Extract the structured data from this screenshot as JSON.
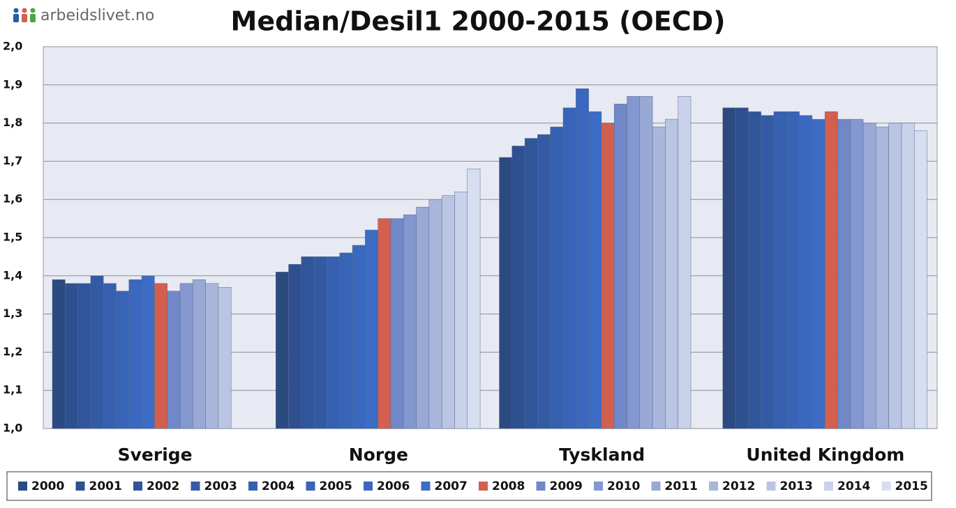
{
  "logo": "arbeidslivet.no",
  "chart_data": {
    "type": "bar",
    "title": "Median/Desil1 2000-2015 (OECD)",
    "categories": [
      "Sverige",
      "Norge",
      "Tyskland",
      "United Kingdom"
    ],
    "ylim": [
      1.0,
      2.0
    ],
    "yticks": [
      {
        "value": 1.0,
        "label": "1,0"
      },
      {
        "value": 1.1,
        "label": "1,1"
      },
      {
        "value": 1.2,
        "label": "1,2"
      },
      {
        "value": 1.3,
        "label": "1,3"
      },
      {
        "value": 1.4,
        "label": "1,4"
      },
      {
        "value": 1.5,
        "label": "1,5"
      },
      {
        "value": 1.6,
        "label": "1,6"
      },
      {
        "value": 1.7,
        "label": "1,7"
      },
      {
        "value": 1.8,
        "label": "1,8"
      },
      {
        "value": 1.9,
        "label": "1,9"
      },
      {
        "value": 2.0,
        "label": "2,0"
      }
    ],
    "grid": true,
    "legend": "bottom",
    "series": [
      {
        "name": "2000",
        "color": "#2b4a80",
        "values": [
          1.39,
          1.41,
          1.71,
          1.84
        ]
      },
      {
        "name": "2001",
        "color": "#2e5090",
        "values": [
          1.38,
          1.43,
          1.74,
          1.84
        ]
      },
      {
        "name": "2002",
        "color": "#30559a",
        "values": [
          1.38,
          1.45,
          1.76,
          1.83
        ]
      },
      {
        "name": "2003",
        "color": "#335aa5",
        "values": [
          1.4,
          1.45,
          1.77,
          1.82
        ]
      },
      {
        "name": "2004",
        "color": "#3660b0",
        "values": [
          1.38,
          1.45,
          1.79,
          1.83
        ]
      },
      {
        "name": "2005",
        "color": "#3864b8",
        "values": [
          1.36,
          1.46,
          1.84,
          1.83
        ]
      },
      {
        "name": "2006",
        "color": "#3a68be",
        "values": [
          1.39,
          1.48,
          1.89,
          1.82
        ]
      },
      {
        "name": "2007",
        "color": "#3d6cc5",
        "values": [
          1.4,
          1.52,
          1.83,
          1.81
        ]
      },
      {
        "name": "2008",
        "color": "#d35f4f",
        "values": [
          1.38,
          1.55,
          1.8,
          1.83
        ]
      },
      {
        "name": "2009",
        "color": "#7088c8",
        "values": [
          1.36,
          1.55,
          1.85,
          1.81
        ]
      },
      {
        "name": "2010",
        "color": "#8498cf",
        "values": [
          1.38,
          1.56,
          1.87,
          1.81
        ]
      },
      {
        "name": "2011",
        "color": "#98a9d6",
        "values": [
          1.39,
          1.58,
          1.87,
          1.8
        ]
      },
      {
        "name": "2012",
        "color": "#a9b7dc",
        "values": [
          1.38,
          1.6,
          1.79,
          1.79
        ]
      },
      {
        "name": "2013",
        "color": "#b9c5e3",
        "values": [
          1.37,
          1.61,
          1.81,
          1.8
        ]
      },
      {
        "name": "2014",
        "color": "#c9d2ea",
        "values": [
          null,
          1.62,
          1.87,
          1.8
        ]
      },
      {
        "name": "2015",
        "color": "#d6def0",
        "values": [
          null,
          1.68,
          null,
          1.78
        ]
      }
    ]
  }
}
